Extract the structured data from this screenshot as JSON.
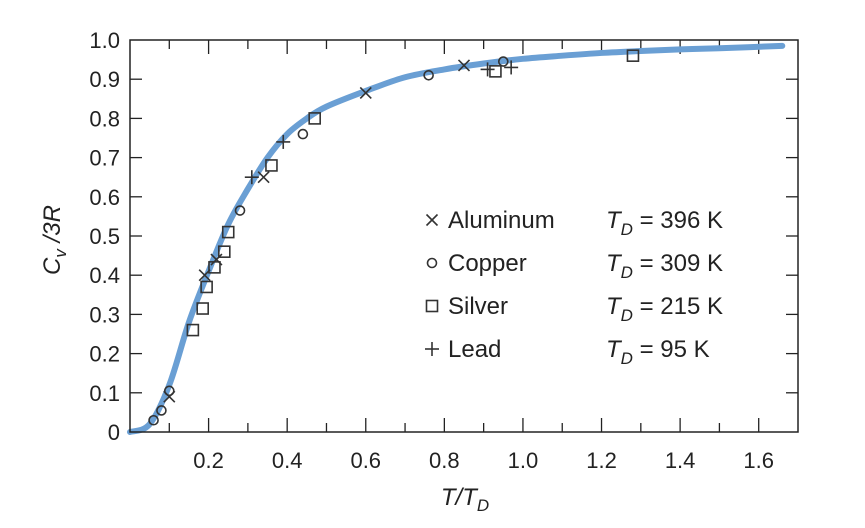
{
  "chart_data": {
    "type": "scatter",
    "xlabel": "T/T_D",
    "ylabel": "C_v/3R",
    "xlim": [
      0,
      1.7
    ],
    "ylim": [
      0,
      1.0
    ],
    "x_ticks": [
      "0.2",
      "0.4",
      "0.6",
      "0.8",
      "1.0",
      "1.2",
      "1.4",
      "1.6"
    ],
    "y_ticks": [
      "0",
      "0.1",
      "0.2",
      "0.3",
      "0.4",
      "0.5",
      "0.6",
      "0.7",
      "0.8",
      "0.9",
      "1.0"
    ],
    "legend_position": "center-right",
    "curve": {
      "color": "#6a9fd4",
      "x": [
        0,
        0.05,
        0.1,
        0.15,
        0.2,
        0.25,
        0.3,
        0.35,
        0.4,
        0.45,
        0.5,
        0.6,
        0.7,
        0.8,
        0.9,
        1.0,
        1.1,
        1.2,
        1.3,
        1.4,
        1.5,
        1.66
      ],
      "y": [
        0,
        0.02,
        0.12,
        0.28,
        0.41,
        0.53,
        0.62,
        0.7,
        0.76,
        0.8,
        0.83,
        0.87,
        0.905,
        0.925,
        0.94,
        0.952,
        0.96,
        0.967,
        0.972,
        0.976,
        0.979,
        0.985
      ]
    },
    "series": [
      {
        "name": "Aluminum",
        "marker": "x",
        "td_label": "= 396 K",
        "points": [
          [
            0.1,
            0.09
          ],
          [
            0.19,
            0.4
          ],
          [
            0.22,
            0.44
          ],
          [
            0.34,
            0.65
          ],
          [
            0.6,
            0.865
          ],
          [
            0.85,
            0.935
          ]
        ]
      },
      {
        "name": "Copper",
        "marker": "circle",
        "td_label": "= 309 K",
        "points": [
          [
            0.06,
            0.03
          ],
          [
            0.08,
            0.055
          ],
          [
            0.1,
            0.105
          ],
          [
            0.28,
            0.565
          ],
          [
            0.44,
            0.76
          ],
          [
            0.76,
            0.91
          ],
          [
            0.95,
            0.945
          ]
        ]
      },
      {
        "name": "Silver",
        "marker": "square",
        "td_label": "= 215 K",
        "points": [
          [
            0.16,
            0.26
          ],
          [
            0.185,
            0.315
          ],
          [
            0.195,
            0.37
          ],
          [
            0.215,
            0.42
          ],
          [
            0.24,
            0.46
          ],
          [
            0.25,
            0.51
          ],
          [
            0.36,
            0.68
          ],
          [
            0.47,
            0.8
          ],
          [
            0.93,
            0.92
          ],
          [
            1.28,
            0.96
          ]
        ]
      },
      {
        "name": "Lead",
        "marker": "plus",
        "td_label": "= 95 K",
        "points": [
          [
            0.31,
            0.65
          ],
          [
            0.39,
            0.74
          ],
          [
            0.91,
            0.925
          ],
          [
            0.97,
            0.93
          ]
        ]
      }
    ]
  }
}
